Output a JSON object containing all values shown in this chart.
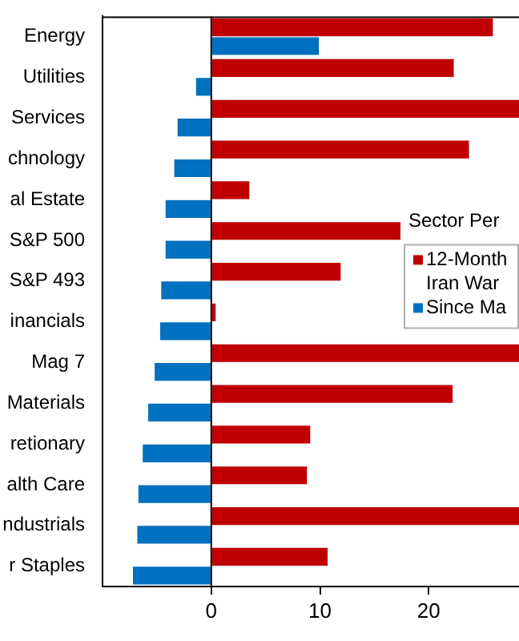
{
  "chart_data": {
    "type": "bar",
    "orientation": "horizontal",
    "legend_title": "Sector Per",
    "legend": "right",
    "categories": [
      "Energy",
      "Utilities",
      "Services",
      "chnology",
      "al Estate",
      "S&P 500",
      "S&P 493",
      "inancials",
      "Mag 7",
      "Materials",
      "retionary",
      "alth Care",
      "ndustrials",
      "r Staples"
    ],
    "series": [
      {
        "name": "12-Month Iran War",
        "color": "#c00000",
        "values": [
          25.9,
          22.3,
          28.3,
          23.7,
          3.5,
          17.4,
          11.9,
          0.4,
          28.3,
          22.2,
          9.1,
          8.8,
          28.3,
          10.7
        ]
      },
      {
        "name": "Since Ma",
        "color": "#0070c0",
        "values": [
          9.9,
          -1.4,
          -3.1,
          -3.4,
          -4.2,
          -4.2,
          -4.6,
          -4.7,
          -5.2,
          -5.8,
          -6.3,
          -6.7,
          -6.8,
          -7.2
        ]
      }
    ],
    "xlim": [
      -10,
      28.3
    ],
    "xticks": [
      0,
      10,
      20
    ]
  }
}
